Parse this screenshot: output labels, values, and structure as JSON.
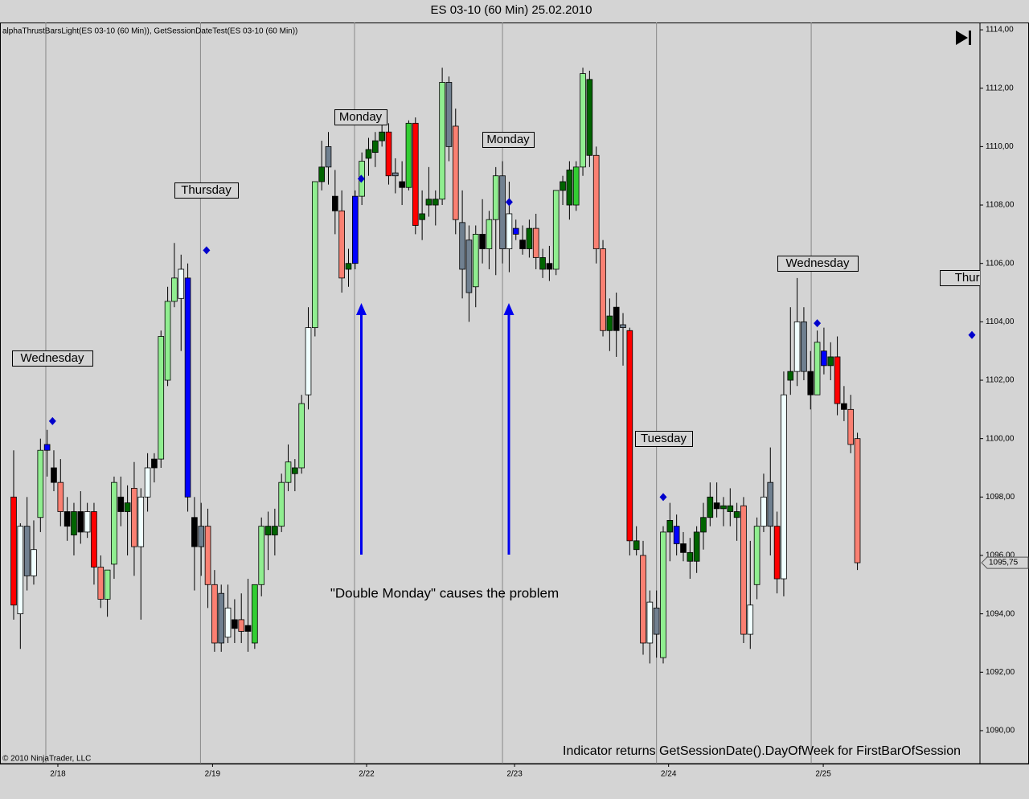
{
  "chart_data": {
    "type": "candlestick",
    "title": "ES 03-10 (60 Min)  25.02.2010",
    "indicator_label": "alphaThrustBarsLight(ES 03-10 (60 Min)), GetSessionDateTest(ES 03-10 (60 Min))",
    "ohlc": [
      [
        1098.0,
        1099.6,
        1093.8,
        1094.3
      ],
      [
        1094.0,
        1097.1,
        1092.8,
        1097.0
      ],
      [
        1097.0,
        1098.0,
        1094.8,
        1095.3
      ],
      [
        1095.3,
        1097.2,
        1095.0,
        1096.2
      ],
      [
        1097.3,
        1100.0,
        1096.8,
        1099.6
      ],
      [
        1099.6,
        1100.3,
        1098.7,
        1099.8
      ],
      [
        1099.0,
        1099.6,
        1098.2,
        1098.5
      ],
      [
        1098.5,
        1099.3,
        1097.0,
        1097.5
      ],
      [
        1097.5,
        1098.0,
        1096.5,
        1097.0
      ],
      [
        1096.7,
        1097.8,
        1096.0,
        1097.5
      ],
      [
        1097.5,
        1098.2,
        1096.4,
        1096.8
      ],
      [
        1096.8,
        1097.8,
        1096.6,
        1097.5
      ],
      [
        1097.5,
        1097.8,
        1095.0,
        1095.6
      ],
      [
        1095.6,
        1096.0,
        1094.2,
        1094.5
      ],
      [
        1094.5,
        1095.5,
        1093.9,
        1095.5
      ],
      [
        1095.7,
        1098.7,
        1095.2,
        1098.5
      ],
      [
        1098.0,
        1098.7,
        1097.0,
        1097.5
      ],
      [
        1097.5,
        1098.4,
        1096.0,
        1097.8
      ],
      [
        1098.3,
        1099.2,
        1095.3,
        1096.3
      ],
      [
        1096.3,
        1098.3,
        1093.8,
        1098.0
      ],
      [
        1098.0,
        1099.5,
        1097.5,
        1099.0
      ],
      [
        1099.0,
        1099.5,
        1098.5,
        1099.3
      ],
      [
        1099.3,
        1103.7,
        1099.0,
        1103.5
      ],
      [
        1102.0,
        1105.2,
        1101.8,
        1104.7
      ],
      [
        1104.7,
        1106.7,
        1104.5,
        1105.5
      ],
      [
        1104.8,
        1106.3,
        1103.0,
        1105.8
      ],
      [
        1105.5,
        1106.0,
        1097.5,
        1098.0
      ],
      [
        1097.3,
        1098.0,
        1094.8,
        1096.3
      ],
      [
        1097.0,
        1097.8,
        1095.3,
        1096.3
      ],
      [
        1097.0,
        1097.6,
        1094.2,
        1095.0
      ],
      [
        1095.0,
        1095.5,
        1092.7,
        1093.0
      ],
      [
        1093.0,
        1095.0,
        1092.7,
        1094.7
      ],
      [
        1094.2,
        1095.0,
        1093.0,
        1093.2
      ],
      [
        1093.5,
        1094.5,
        1093.0,
        1093.8
      ],
      [
        1093.8,
        1094.7,
        1093.0,
        1093.4
      ],
      [
        1093.4,
        1095.2,
        1092.7,
        1093.6
      ],
      [
        1093.0,
        1095.0,
        1092.8,
        1095.0
      ],
      [
        1095.0,
        1097.3,
        1094.6,
        1097.0
      ],
      [
        1097.0,
        1097.5,
        1095.5,
        1096.7
      ],
      [
        1096.7,
        1097.6,
        1096.0,
        1097.0
      ],
      [
        1097.0,
        1098.8,
        1096.8,
        1098.5
      ],
      [
        1098.5,
        1099.8,
        1098.2,
        1099.2
      ],
      [
        1098.8,
        1099.3,
        1098.2,
        1099.0
      ],
      [
        1099.0,
        1101.5,
        1098.8,
        1101.2
      ],
      [
        1101.5,
        1104.5,
        1101.0,
        1103.8
      ],
      [
        1103.8,
        1108.8,
        1103.5,
        1108.8
      ],
      [
        1108.8,
        1110.2,
        1108.5,
        1109.3
      ],
      [
        1109.3,
        1110.5,
        1108.7,
        1110.0
      ],
      [
        1108.3,
        1109.2,
        1107.0,
        1107.8
      ],
      [
        1107.8,
        1108.5,
        1105.0,
        1105.5
      ],
      [
        1105.8,
        1106.5,
        1105.2,
        1106.0
      ],
      [
        1106.0,
        1108.5,
        1105.8,
        1108.3
      ],
      [
        1108.3,
        1109.8,
        1108.0,
        1109.5
      ],
      [
        1109.6,
        1110.3,
        1109.0,
        1109.9
      ],
      [
        1109.8,
        1110.5,
        1109.3,
        1110.2
      ],
      [
        1110.2,
        1110.8,
        1110.0,
        1110.5
      ],
      [
        1110.5,
        1110.8,
        1108.7,
        1109.0
      ],
      [
        1109.0,
        1109.6,
        1108.4,
        1109.1
      ],
      [
        1108.8,
        1109.5,
        1108.0,
        1108.6
      ],
      [
        1108.6,
        1110.9,
        1108.5,
        1110.8
      ],
      [
        1110.8,
        1111.0,
        1107.0,
        1107.3
      ],
      [
        1107.5,
        1108.5,
        1106.8,
        1107.7
      ],
      [
        1108.2,
        1109.3,
        1107.6,
        1108.0
      ],
      [
        1108.0,
        1108.5,
        1107.3,
        1108.2
      ],
      [
        1108.2,
        1112.7,
        1108.0,
        1112.2
      ],
      [
        1112.2,
        1112.4,
        1109.5,
        1110.0
      ],
      [
        1110.7,
        1111.3,
        1107.0,
        1107.5
      ],
      [
        1107.4,
        1108.5,
        1104.8,
        1105.8
      ],
      [
        1106.8,
        1107.3,
        1104.0,
        1105.0
      ],
      [
        1105.2,
        1107.3,
        1104.5,
        1107.0
      ],
      [
        1107.0,
        1108.2,
        1106.0,
        1106.5
      ],
      [
        1106.5,
        1107.8,
        1105.8,
        1107.5
      ],
      [
        1107.5,
        1109.3,
        1105.6,
        1109.0
      ],
      [
        1109.0,
        1109.5,
        1106.0,
        1106.5
      ],
      [
        1106.5,
        1108.8,
        1105.7,
        1107.7
      ],
      [
        1107.0,
        1107.5,
        1106.8,
        1107.2
      ],
      [
        1106.8,
        1107.3,
        1106.3,
        1106.5
      ],
      [
        1106.5,
        1107.5,
        1106.2,
        1107.2
      ],
      [
        1107.2,
        1107.7,
        1105.8,
        1106.2
      ],
      [
        1106.2,
        1106.5,
        1105.5,
        1105.8
      ],
      [
        1105.8,
        1106.6,
        1105.4,
        1106.0
      ],
      [
        1105.8,
        1108.5,
        1105.6,
        1108.5
      ],
      [
        1108.5,
        1109.0,
        1108.0,
        1108.8
      ],
      [
        1108.0,
        1109.5,
        1107.5,
        1109.2
      ],
      [
        1108.0,
        1109.5,
        1107.8,
        1109.3
      ],
      [
        1109.3,
        1112.7,
        1109.0,
        1112.5
      ],
      [
        1112.3,
        1112.6,
        1109.3,
        1109.7
      ],
      [
        1109.7,
        1110.0,
        1106.0,
        1106.5
      ],
      [
        1106.5,
        1106.8,
        1103.5,
        1103.7
      ],
      [
        1103.7,
        1104.8,
        1103.0,
        1104.2
      ],
      [
        1104.5,
        1105.0,
        1102.8,
        1103.7
      ],
      [
        1103.9,
        1104.3,
        1102.5,
        1103.8
      ],
      [
        1103.7,
        1103.8,
        1096.0,
        1096.5
      ],
      [
        1096.5,
        1097.0,
        1096.0,
        1096.2
      ],
      [
        1096.0,
        1096.5,
        1092.6,
        1093.0
      ],
      [
        1093.0,
        1094.8,
        1092.3,
        1094.4
      ],
      [
        1094.2,
        1094.8,
        1092.5,
        1093.3
      ],
      [
        1092.5,
        1097.0,
        1092.3,
        1096.8
      ],
      [
        1096.8,
        1097.8,
        1095.8,
        1097.2
      ],
      [
        1097.0,
        1097.4,
        1096.0,
        1096.4
      ],
      [
        1096.4,
        1096.8,
        1095.8,
        1096.1
      ],
      [
        1096.1,
        1096.6,
        1095.2,
        1095.8
      ],
      [
        1095.8,
        1097.0,
        1095.4,
        1096.8
      ],
      [
        1096.8,
        1097.8,
        1096.2,
        1097.3
      ],
      [
        1097.3,
        1098.5,
        1097.0,
        1098.0
      ],
      [
        1097.8,
        1098.5,
        1097.3,
        1097.6
      ],
      [
        1097.6,
        1098.0,
        1097.0,
        1097.7
      ],
      [
        1097.5,
        1098.3,
        1097.0,
        1097.7
      ],
      [
        1097.5,
        1097.8,
        1096.5,
        1097.3
      ],
      [
        1097.7,
        1098.0,
        1093.0,
        1093.3
      ],
      [
        1093.3,
        1096.5,
        1092.8,
        1094.3
      ],
      [
        1095.0,
        1097.3,
        1094.5,
        1097.0
      ],
      [
        1097.0,
        1098.8,
        1096.8,
        1098.0
      ],
      [
        1097.0,
        1099.7,
        1096.0,
        1098.5
      ],
      [
        1097.0,
        1097.5,
        1094.7,
        1095.2
      ],
      [
        1095.2,
        1102.3,
        1094.6,
        1101.5
      ],
      [
        1102.0,
        1104.5,
        1101.5,
        1102.3
      ],
      [
        1102.3,
        1105.5,
        1101.8,
        1104.0
      ],
      [
        1104.0,
        1104.5,
        1102.0,
        1102.3
      ],
      [
        1102.3,
        1103.0,
        1101.0,
        1101.5
      ],
      [
        1101.5,
        1103.7,
        1101.5,
        1103.3
      ],
      [
        1103.0,
        1103.8,
        1102.2,
        1102.5
      ],
      [
        1102.5,
        1103.3,
        1102.0,
        1102.8
      ],
      [
        1102.8,
        1103.5,
        1100.8,
        1101.2
      ],
      [
        1101.2,
        1101.8,
        1100.6,
        1101.0
      ],
      [
        1101.0,
        1101.5,
        1099.5,
        1099.8
      ],
      [
        1100.0,
        1100.2,
        1095.5,
        1095.75
      ]
    ],
    "colors": [
      "#ff0000",
      "#f0ffff",
      "#708090",
      "#f0ffff",
      "#90ee90",
      "#0000ff",
      "#000000",
      "#fa8072",
      "#000000",
      "#006400",
      "#000000",
      "#f0ffff",
      "#ff0000",
      "#fa8072",
      "#90ee90",
      "#90ee90",
      "#000000",
      "#006400",
      "#fa8072",
      "#f0ffff",
      "#f0ffff",
      "#000000",
      "#90ee90",
      "#90ee90",
      "#90ee90",
      "#f0ffff",
      "#0000ff",
      "#000000",
      "#708090",
      "#fa8072",
      "#fa8072",
      "#708090",
      "#f0ffff",
      "#000000",
      "#fa8072",
      "#000000",
      "#32cd32",
      "#90ee90",
      "#006400",
      "#006400",
      "#90ee90",
      "#90ee90",
      "#006400",
      "#90ee90",
      "#f0ffff",
      "#90ee90",
      "#006400",
      "#708090",
      "#000000",
      "#fa8072",
      "#006400",
      "#0000ff",
      "#90ee90",
      "#006400",
      "#006400",
      "#006400",
      "#ff0000",
      "#708090",
      "#000000",
      "#32cd32",
      "#ff0000",
      "#006400",
      "#006400",
      "#006400",
      "#90ee90",
      "#708090",
      "#fa8072",
      "#708090",
      "#708090",
      "#90ee90",
      "#000000",
      "#90ee90",
      "#90ee90",
      "#708090",
      "#f0ffff",
      "#0000ff",
      "#000000",
      "#006400",
      "#fa8072",
      "#006400",
      "#000000",
      "#90ee90",
      "#006400",
      "#006400",
      "#32cd32",
      "#90ee90",
      "#006400",
      "#fa8072",
      "#fa8072",
      "#006400",
      "#000000",
      "#708090",
      "#ff0000",
      "#006400",
      "#fa8072",
      "#f0ffff",
      "#708090",
      "#90ee90",
      "#006400",
      "#0000ff",
      "#000000",
      "#006400",
      "#006400",
      "#006400",
      "#006400",
      "#000000",
      "#006400",
      "#006400",
      "#006400",
      "#fa8072",
      "#f0ffff",
      "#90ee90",
      "#f0ffff",
      "#708090",
      "#ff0000",
      "#f0ffff",
      "#006400",
      "#f0ffff",
      "#708090",
      "#000000",
      "#90ee90",
      "#0000ff",
      "#006400",
      "#ff0000",
      "#000000",
      "#fa8072",
      "#fa8072"
    ],
    "markers": {
      "color": "#0000cc",
      "x": [
        5.8,
        28.8,
        51.9,
        74.0,
        97.0,
        120.0,
        143.1
      ],
      "values": [
        1100.6,
        1106.45,
        1108.9,
        1108.1,
        1098.0,
        1103.95,
        1103.55
      ]
    },
    "annotations": [
      "Wednesday",
      "Thursday",
      "Monday",
      "Monday",
      "Tuesday",
      "Wednesday",
      "Thursday"
    ],
    "note": "\"Double Monday\" causes the problem",
    "footer": "Indicator returns GetSessionDate().DayOfWeek for FirstBarOfSession",
    "copyright": "© 2010 NinjaTrader, LLC",
    "last_price": {
      "value": 1095.75,
      "label": "1095,75"
    },
    "xlim": [
      -2.04,
      144.3
    ],
    "xticks": [
      {
        "value": 4.8,
        "label": "2/18"
      },
      {
        "value": 27.9,
        "label": "2/19"
      },
      {
        "value": 50.9,
        "label": "2/22"
      },
      {
        "value": 73.0,
        "label": "2/23"
      },
      {
        "value": 96.0,
        "label": "2/24"
      },
      {
        "value": 119.1,
        "label": "2/25"
      }
    ],
    "ylim": [
      1088.87,
      1114.25
    ],
    "yticks": [
      {
        "value": 1090,
        "label": "1090,00"
      },
      {
        "value": 1092,
        "label": "1092,00"
      },
      {
        "value": 1094,
        "label": "1094,00"
      },
      {
        "value": 1096,
        "label": "1096,00"
      },
      {
        "value": 1098,
        "label": "1098,00"
      },
      {
        "value": 1100,
        "label": "1100,00"
      },
      {
        "value": 1102,
        "label": "1102,00"
      },
      {
        "value": 1104,
        "label": "1104,00"
      },
      {
        "value": 1106,
        "label": "1106,00"
      },
      {
        "value": 1108,
        "label": "1108,00"
      },
      {
        "value": 1110,
        "label": "1110,00"
      },
      {
        "value": 1112,
        "label": "1112,00"
      },
      {
        "value": 1114,
        "label": "1114,00"
      }
    ],
    "grid": true
  }
}
